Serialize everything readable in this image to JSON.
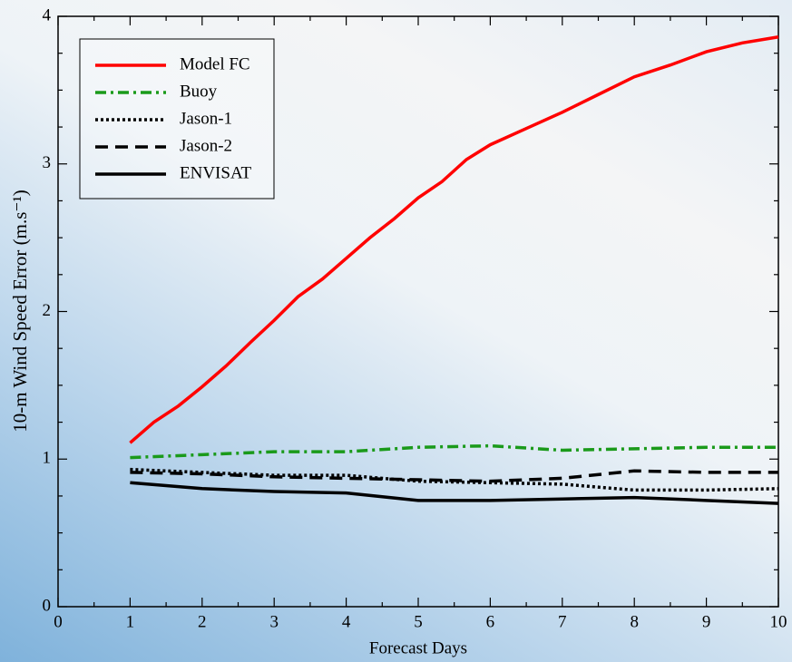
{
  "chart_data": {
    "type": "line",
    "xlabel": "Forecast  Days",
    "ylabel": "10-m Wind Speed Error     (m.s⁻¹)",
    "xlim": [
      0,
      10
    ],
    "xticks": [
      0,
      1,
      2,
      3,
      4,
      5,
      6,
      7,
      8,
      9,
      10
    ],
    "ylim": [
      0,
      4
    ],
    "yticks": [
      0,
      1,
      2,
      3,
      4
    ],
    "legend": "top-left",
    "series": [
      {
        "name": "Model FC",
        "color": "#ff0000",
        "dash": "solid",
        "x": [
          1,
          1.33,
          1.67,
          2,
          2.33,
          2.67,
          3,
          3.33,
          3.67,
          4,
          4.33,
          4.67,
          5,
          5.33,
          5.67,
          6,
          6.5,
          7,
          7.5,
          8,
          8.5,
          9,
          9.5,
          10
        ],
        "values": [
          1.11,
          1.25,
          1.36,
          1.49,
          1.63,
          1.79,
          1.94,
          2.1,
          2.22,
          2.36,
          2.5,
          2.63,
          2.77,
          2.88,
          3.03,
          3.13,
          3.24,
          3.35,
          3.47,
          3.59,
          3.67,
          3.76,
          3.82,
          3.86
        ]
      },
      {
        "name": "Buoy",
        "color": "#1a9a1a",
        "dash": "dashdot",
        "x": [
          1,
          2,
          3,
          4,
          5,
          6,
          7,
          8,
          9,
          10
        ],
        "values": [
          1.01,
          1.03,
          1.05,
          1.05,
          1.08,
          1.09,
          1.06,
          1.07,
          1.08,
          1.08
        ]
      },
      {
        "name": "Jason-1",
        "color": "#000000",
        "dash": "dot",
        "x": [
          1,
          2,
          3,
          4,
          5,
          6,
          7,
          8,
          9,
          10
        ],
        "values": [
          0.93,
          0.91,
          0.89,
          0.89,
          0.85,
          0.84,
          0.83,
          0.79,
          0.79,
          0.8
        ]
      },
      {
        "name": "Jason-2",
        "color": "#000000",
        "dash": "dash",
        "x": [
          1,
          2,
          3,
          4,
          5,
          6,
          7,
          8,
          9,
          10
        ],
        "values": [
          0.91,
          0.9,
          0.88,
          0.87,
          0.86,
          0.85,
          0.87,
          0.92,
          0.91,
          0.91
        ]
      },
      {
        "name": "ENVISAT",
        "color": "#000000",
        "dash": "solid",
        "x": [
          1,
          2,
          3,
          4,
          5,
          6,
          7,
          8,
          9,
          10
        ],
        "values": [
          0.84,
          0.8,
          0.78,
          0.77,
          0.72,
          0.72,
          0.73,
          0.74,
          0.72,
          0.7
        ]
      }
    ]
  }
}
